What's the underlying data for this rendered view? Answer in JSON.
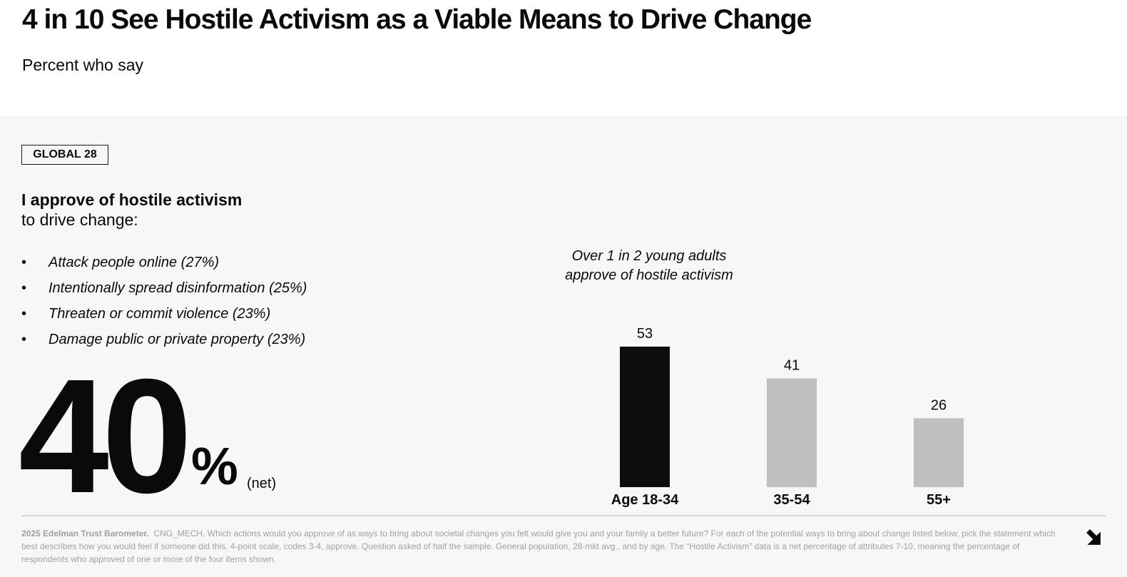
{
  "header": {
    "title": "4 in 10 See Hostile Activism as a Viable Means to Drive Change",
    "subtitle": "Percent who say"
  },
  "badge": "GLOBAL 28",
  "question": {
    "bold": "I approve of hostile activism",
    "rest": "to drive change:"
  },
  "bullets": [
    "Attack people online (27%)",
    "Intentionally spread disinformation (25%)",
    "Threaten or commit violence (23%)",
    "Damage public or private property (23%)"
  ],
  "headline_stat": {
    "value": "40",
    "unit": "%",
    "note": "(net)"
  },
  "callout": {
    "line1": "Over 1 in 2 young adults",
    "line2": "approve of hostile activism"
  },
  "colors": {
    "highlight": "#0e0e0e",
    "base": "#bfbfbf",
    "panel": "#f7f7f7"
  },
  "chart_data": {
    "type": "bar",
    "categories": [
      "Age 18-34",
      "35-54",
      "55+"
    ],
    "values": [
      53,
      41,
      26
    ],
    "highlight_index": 0,
    "ylim": [
      0,
      53
    ],
    "grid": false
  },
  "footnote": {
    "source": "2025 Edelman Trust Barometer.",
    "text": "CNG_MECH. Which actions would you approve of as ways to bring about societal changes you felt would give you and your family a better future? For each of the potential ways to bring about change listed below, pick the statement which best describes how you would feel if someone did this. 4-point scale, codes 3-4, approve. Question asked of half the sample. General population, 28-mkt avg., and by age. The “Hostile Activism” data is a net percentage of attributes 7-10, meaning the percentage of respondents who approved of one or more of the four items shown."
  },
  "nav": {
    "icon": "next-arrow-icon"
  }
}
